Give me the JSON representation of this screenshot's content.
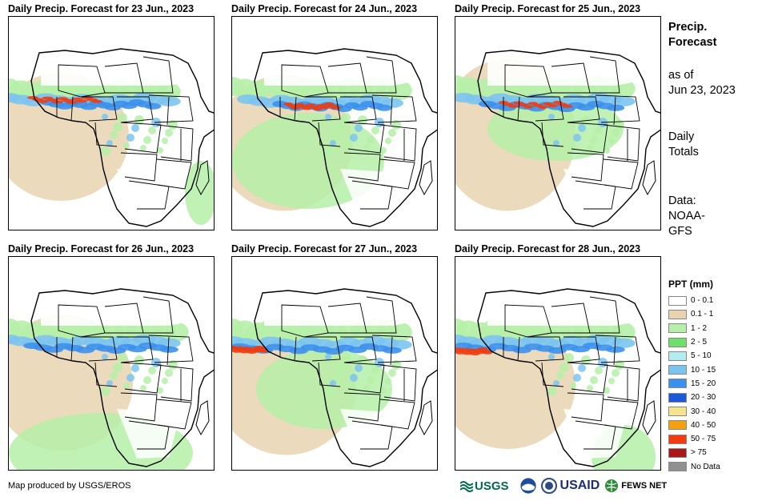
{
  "panels": [
    {
      "title": "Daily Precip. Forecast for 23 Jun., 2023"
    },
    {
      "title": "Daily Precip. Forecast for 24 Jun., 2023"
    },
    {
      "title": "Daily Precip. Forecast for 25 Jun., 2023"
    },
    {
      "title": "Daily Precip. Forecast for 26 Jun., 2023"
    },
    {
      "title": "Daily Precip. Forecast for 27 Jun., 2023"
    },
    {
      "title": "Daily Precip. Forecast for 28 Jun., 2023"
    }
  ],
  "side": {
    "title_line1": "Precip.",
    "title_line2": "Forecast",
    "asof_line1": "as of",
    "asof_line2": "Jun 23, 2023",
    "totals_line1": "Daily",
    "totals_line2": "Totals",
    "data_line1": "Data:",
    "data_line2": "NOAA-",
    "data_line3": "GFS"
  },
  "legend": {
    "title": "PPT (mm)",
    "items": [
      {
        "label": "0 - 0.1",
        "color": "#ffffff"
      },
      {
        "label": "0.1 - 1",
        "color": "#e8d3b0"
      },
      {
        "label": "1 - 2",
        "color": "#b6f0a8"
      },
      {
        "label": "2 - 5",
        "color": "#6ee06a"
      },
      {
        "label": "5 - 10",
        "color": "#b4ecf0"
      },
      {
        "label": "10 - 15",
        "color": "#7cc4f0"
      },
      {
        "label": "15 - 20",
        "color": "#3c90ec"
      },
      {
        "label": "20 - 30",
        "color": "#1c58d8"
      },
      {
        "label": "30 - 40",
        "color": "#f4e48c"
      },
      {
        "label": "40 - 50",
        "color": "#f4a010"
      },
      {
        "label": "50 - 75",
        "color": "#f03c10"
      },
      {
        "label": "> 75",
        "color": "#a81818"
      },
      {
        "label": "No Data",
        "color": "#909090"
      }
    ]
  },
  "footer": {
    "credit": "Map produced by USGS/EROS",
    "logo_usgs": "USGS",
    "logo_usaid": "USAID",
    "logo_fews": "FEWS NET"
  }
}
